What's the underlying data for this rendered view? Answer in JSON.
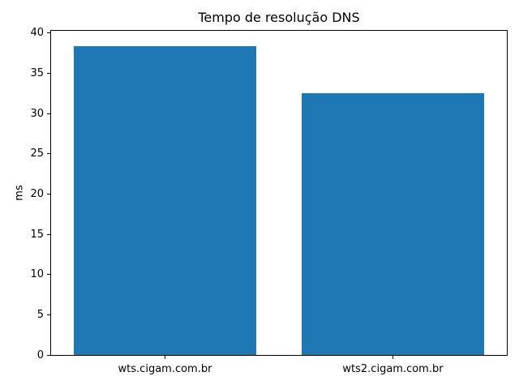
{
  "chart_data": {
    "type": "bar",
    "title": "Tempo de resolução DNS",
    "xlabel": "",
    "ylabel": "ms",
    "categories": [
      "wts.cigam.com.br",
      "wts2.cigam.com.br"
    ],
    "values": [
      38.4,
      32.5
    ],
    "yticks": [
      0,
      5,
      10,
      15,
      20,
      25,
      30,
      35,
      40
    ],
    "ylim": [
      0,
      40.3
    ],
    "bar_color": "#1f77b4",
    "spine_color": "#000000",
    "background_color": "#ffffff",
    "grid": false,
    "legend": null
  }
}
